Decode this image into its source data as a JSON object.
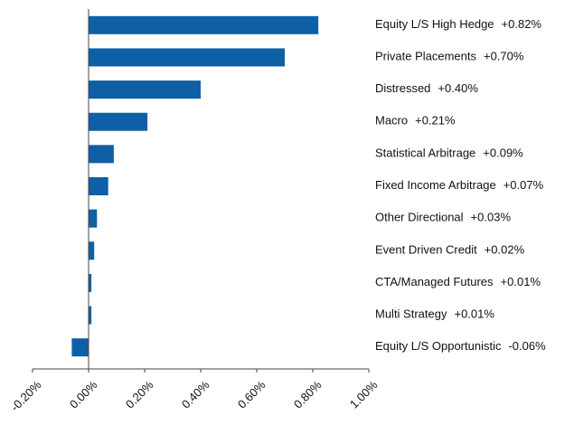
{
  "chart_data": {
    "type": "hbar",
    "categories": [
      "Equity L/S High Hedge",
      "Private Placements",
      "Distressed",
      "Macro",
      "Statistical Arbitrage",
      "Fixed Income Arbitrage",
      "Other Directional",
      "Event Driven Credit",
      "CTA/Managed Futures",
      "Multi Strategy",
      "Equity L/S Opportunistic"
    ],
    "values": [
      0.82,
      0.7,
      0.4,
      0.21,
      0.09,
      0.07,
      0.03,
      0.02,
      0.01,
      0.01,
      -0.06
    ],
    "value_labels": [
      "+0.82%",
      "+0.70%",
      "+0.40%",
      "+0.21%",
      "+0.09%",
      "+0.07%",
      "+0.03%",
      "+0.02%",
      "+0.01%",
      "+0.01%",
      "-0.06%"
    ],
    "color": "#0f5fa6",
    "xlim": [
      -0.2,
      1.0
    ],
    "xticks": [
      {
        "value": -0.2,
        "label": "-0.20%"
      },
      {
        "value": 0,
        "label": "0.00%"
      },
      {
        "value": 0.2,
        "label": "0.20%"
      },
      {
        "value": 0.4,
        "label": "0.40%"
      },
      {
        "value": 0.6,
        "label": "0.60%"
      },
      {
        "value": 0.8,
        "label": "0.80%"
      },
      {
        "value": 1.0,
        "label": "1.00%"
      }
    ]
  }
}
